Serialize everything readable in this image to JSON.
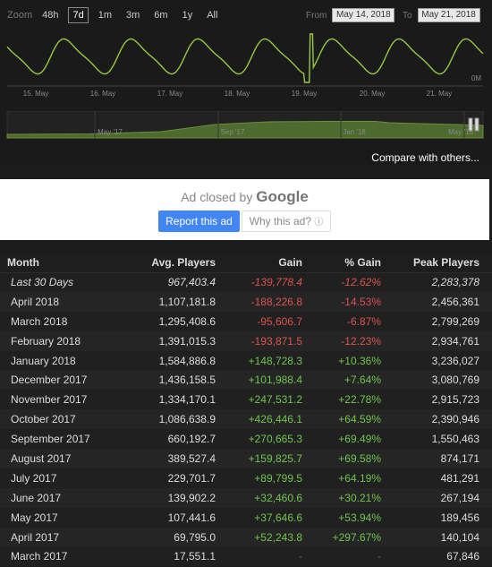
{
  "zoom": {
    "label": "Zoom",
    "options": [
      "48h",
      "7d",
      "1m",
      "3m",
      "6m",
      "1y",
      "All"
    ],
    "active": "7d"
  },
  "range": {
    "from_label": "From",
    "from_value": "May 14, 2018",
    "to_label": "To",
    "to_value": "May 21, 2018"
  },
  "chart": {
    "x_ticks": [
      "15. May",
      "16. May",
      "17. May",
      "18. May",
      "19. May",
      "20. May",
      "21. May"
    ],
    "y_label": "0M",
    "navigator_ticks": [
      "May '17",
      "Sep '17",
      "Jan '18",
      "May '18"
    ],
    "line_color": "#98c93c",
    "nav_fill_color": "#4d6b2e"
  },
  "compare_link": "Compare with others...",
  "ad": {
    "closed_by": "Ad closed by",
    "google": "Google",
    "report": "Report this ad",
    "why": "Why this ad?",
    "info_icon": "info-icon"
  },
  "table": {
    "headers": {
      "month": "Month",
      "avg": "Avg. Players",
      "gain": "Gain",
      "pct": "% Gain",
      "peak": "Peak Players"
    },
    "rows": [
      {
        "month": "Last 30 Days",
        "avg": "967,403.4",
        "gain": "-139,778.4",
        "pct": "-12.62%",
        "peak": "2,283,378",
        "trend": "neg"
      },
      {
        "month": "April 2018",
        "avg": "1,107,181.8",
        "gain": "-188,226.8",
        "pct": "-14.53%",
        "peak": "2,456,361",
        "trend": "neg"
      },
      {
        "month": "March 2018",
        "avg": "1,295,408.6",
        "gain": "-95,606.7",
        "pct": "-6.87%",
        "peak": "2,799,269",
        "trend": "neg"
      },
      {
        "month": "February 2018",
        "avg": "1,391,015.3",
        "gain": "-193,871.5",
        "pct": "-12.23%",
        "peak": "2,934,761",
        "trend": "neg"
      },
      {
        "month": "January 2018",
        "avg": "1,584,886.8",
        "gain": "+148,728.3",
        "pct": "+10.36%",
        "peak": "3,236,027",
        "trend": "pos"
      },
      {
        "month": "December 2017",
        "avg": "1,436,158.5",
        "gain": "+101,988.4",
        "pct": "+7.64%",
        "peak": "3,080,769",
        "trend": "pos"
      },
      {
        "month": "November 2017",
        "avg": "1,334,170.1",
        "gain": "+247,531.2",
        "pct": "+22.78%",
        "peak": "2,915,723",
        "trend": "pos"
      },
      {
        "month": "October 2017",
        "avg": "1,086,638.9",
        "gain": "+426,446.1",
        "pct": "+64.59%",
        "peak": "2,390,946",
        "trend": "pos"
      },
      {
        "month": "September 2017",
        "avg": "660,192.7",
        "gain": "+270,665.3",
        "pct": "+69.49%",
        "peak": "1,550,463",
        "trend": "pos"
      },
      {
        "month": "August 2017",
        "avg": "389,527.4",
        "gain": "+159,825.7",
        "pct": "+69.58%",
        "peak": "874,171",
        "trend": "pos"
      },
      {
        "month": "July 2017",
        "avg": "229,701.7",
        "gain": "+89,799.5",
        "pct": "+64.19%",
        "peak": "481,291",
        "trend": "pos"
      },
      {
        "month": "June 2017",
        "avg": "139,902.2",
        "gain": "+32,460.6",
        "pct": "+30.21%",
        "peak": "267,194",
        "trend": "pos"
      },
      {
        "month": "May 2017",
        "avg": "107,441.6",
        "gain": "+37,646.6",
        "pct": "+53.94%",
        "peak": "189,456",
        "trend": "pos"
      },
      {
        "month": "April 2017",
        "avg": "69,795.0",
        "gain": "+52,243.8",
        "pct": "+297.67%",
        "peak": "140,104",
        "trend": "pos"
      },
      {
        "month": "March 2017",
        "avg": "17,551.1",
        "gain": "-",
        "pct": "-",
        "peak": "67,846",
        "trend": "none"
      }
    ]
  }
}
